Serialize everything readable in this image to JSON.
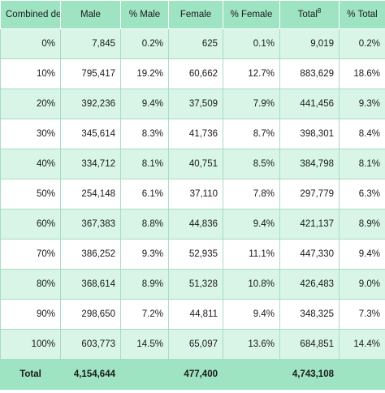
{
  "table": {
    "headers": {
      "degree": "Combined degree",
      "male": "Male",
      "pct_male": "% Male",
      "female": "Female",
      "pct_female": "% Female",
      "total": "Total",
      "total_note": "8",
      "pct_total": "% Total"
    },
    "rows": [
      {
        "degree": "0%",
        "male": "7,845",
        "pct_male": "0.2%",
        "female": "625",
        "pct_female": "0.1%",
        "total": "9,019",
        "pct_total": "0.2%"
      },
      {
        "degree": "10%",
        "male": "795,417",
        "pct_male": "19.2%",
        "female": "60,662",
        "pct_female": "12.7%",
        "total": "883,629",
        "pct_total": "18.6%"
      },
      {
        "degree": "20%",
        "male": "392,236",
        "pct_male": "9.4%",
        "female": "37,509",
        "pct_female": "7.9%",
        "total": "441,456",
        "pct_total": "9.3%"
      },
      {
        "degree": "30%",
        "male": "345,614",
        "pct_male": "8.3%",
        "female": "41,736",
        "pct_female": "8.7%",
        "total": "398,301",
        "pct_total": "8.4%"
      },
      {
        "degree": "40%",
        "male": "334,712",
        "pct_male": "8.1%",
        "female": "40,751",
        "pct_female": "8.5%",
        "total": "384,798",
        "pct_total": "8.1%"
      },
      {
        "degree": "50%",
        "male": "254,148",
        "pct_male": "6.1%",
        "female": "37,110",
        "pct_female": "7.8%",
        "total": "297,779",
        "pct_total": "6.3%"
      },
      {
        "degree": "60%",
        "male": "367,383",
        "pct_male": "8.8%",
        "female": "44,836",
        "pct_female": "9.4%",
        "total": "421,137",
        "pct_total": "8.9%"
      },
      {
        "degree": "70%",
        "male": "386,252",
        "pct_male": "9.3%",
        "female": "52,935",
        "pct_female": "11.1%",
        "total": "447,330",
        "pct_total": "9.4%"
      },
      {
        "degree": "80%",
        "male": "368,614",
        "pct_male": "8.9%",
        "female": "51,328",
        "pct_female": "10.8%",
        "total": "426,483",
        "pct_total": "9.0%"
      },
      {
        "degree": "90%",
        "male": "298,650",
        "pct_male": "7.2%",
        "female": "44,811",
        "pct_female": "9.4%",
        "total": "348,325",
        "pct_total": "7.3%"
      },
      {
        "degree": "100%",
        "male": "603,773",
        "pct_male": "14.5%",
        "female": "65,097",
        "pct_female": "13.6%",
        "total": "684,851",
        "pct_total": "14.4%"
      }
    ],
    "footer": {
      "label": "Total",
      "male": "4,154,644",
      "female": "477,400",
      "total": "4,743,108"
    }
  },
  "colors": {
    "header_bg": "#9ee3c2",
    "stripe_bg": "#d8f5e7",
    "border": "#a9dcc3"
  }
}
